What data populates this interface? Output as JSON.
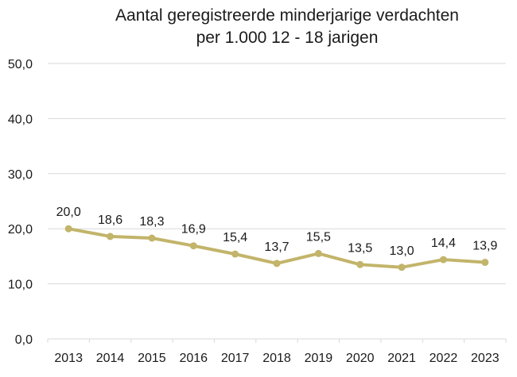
{
  "chart_data": {
    "type": "line",
    "title": [
      "Aantal geregistreerde minderjarige verdachten",
      "per 1.000 12 - 18 jarigen"
    ],
    "xlabel": "",
    "ylabel": "",
    "x": [
      "2013",
      "2014",
      "2015",
      "2016",
      "2017",
      "2018",
      "2019",
      "2020",
      "2021",
      "2022",
      "2023"
    ],
    "values": [
      20.0,
      18.6,
      18.3,
      16.9,
      15.4,
      13.7,
      15.5,
      13.5,
      13.0,
      14.4,
      13.9
    ],
    "data_labels": [
      "20,0",
      "18,6",
      "18,3",
      "16,9",
      "15,4",
      "13,7",
      "15,5",
      "13,5",
      "13,0",
      "14,4",
      "13,9"
    ],
    "ylim": [
      0,
      50
    ],
    "y_ticks": [
      0,
      10,
      20,
      30,
      40,
      50
    ],
    "y_tick_labels": [
      "0,0",
      "10,0",
      "20,0",
      "30,0",
      "40,0",
      "50,0"
    ],
    "grid": true,
    "legend": "none",
    "colors": {
      "line": "#c2b46a",
      "grid": "#d9d9d9",
      "text": "#1a1a1a"
    }
  }
}
